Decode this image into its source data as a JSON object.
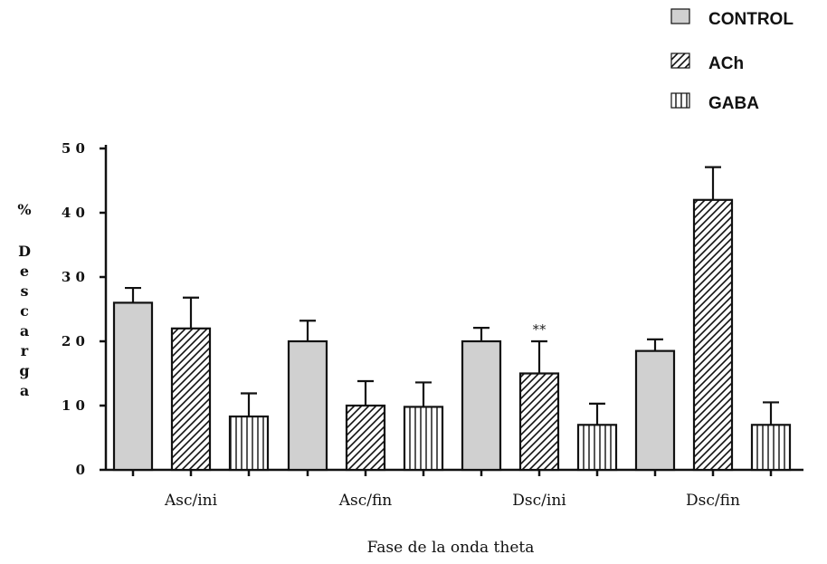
{
  "chart_data": {
    "type": "bar",
    "categories": [
      "Asc/ini",
      "Asc/fin",
      "Dsc/ini",
      "Dsc/fin"
    ],
    "series": [
      {
        "name": "CONTROL",
        "values": [
          26,
          20,
          20,
          18.5
        ],
        "errors": [
          2.3,
          3.2,
          2.1,
          1.8
        ],
        "fill": "solid",
        "color": "#d0d0d0"
      },
      {
        "name": "ACh",
        "values": [
          22,
          10,
          15,
          42
        ],
        "errors": [
          4.8,
          3.8,
          5.0,
          5.1
        ],
        "fill": "diagonal-hatch",
        "color": "#ffffff"
      },
      {
        "name": "GABA",
        "values": [
          8.3,
          9.8,
          7.0,
          7.0
        ],
        "errors": [
          3.6,
          3.8,
          3.3,
          3.5
        ],
        "fill": "vertical-hatch",
        "color": "#ffffff"
      }
    ],
    "ylim": [
      0,
      50
    ],
    "yticks": [
      0,
      10,
      20,
      30,
      40,
      50
    ],
    "ytick_labels": [
      "0",
      "1 0",
      "2 0",
      "3 0",
      "4 0",
      "5 0"
    ],
    "xlabel": "Fase de la onda theta",
    "ylabel_top": "%",
    "ylabel_letters": [
      "D",
      "e",
      "s",
      "c",
      "a",
      "r",
      "g",
      "a"
    ],
    "legend_position": "top-right",
    "annotations": [
      {
        "text": "**",
        "category": "Dsc/ini",
        "series": "ACh"
      }
    ],
    "grid": false
  }
}
